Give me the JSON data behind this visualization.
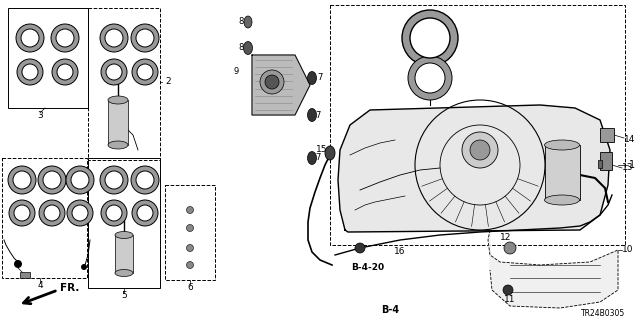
{
  "bg_color": "#ffffff",
  "part_number": "TR24B0305",
  "figsize": [
    6.4,
    3.19
  ],
  "dpi": 100
}
